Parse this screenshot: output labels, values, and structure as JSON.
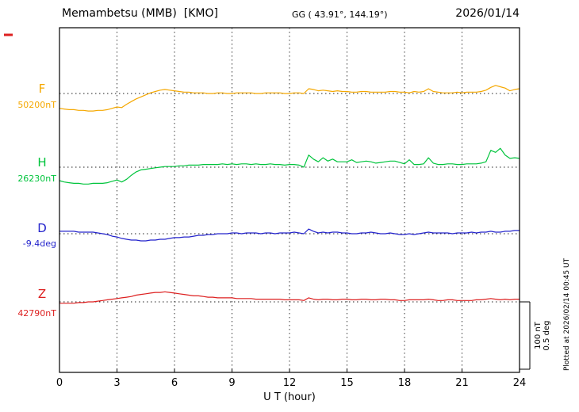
{
  "header": {
    "station_title": "Memambetsu (MMB)  [KMO]",
    "gg_coords": "GG ( 43.91°, 144.19°)",
    "date": "2026/01/14"
  },
  "x_axis": {
    "title": "U T (hour)",
    "min": 0,
    "max": 24,
    "tick_labels": [
      "0",
      "3",
      "6",
      "9",
      "12",
      "15",
      "18",
      "21",
      "24"
    ],
    "grid_hours": [
      3,
      6,
      9,
      12,
      15,
      18,
      21
    ]
  },
  "scale_bar": {
    "nt_label": "100 nT",
    "deg_label": "0.5 deg"
  },
  "plot_note": "Plotted at 2026/02/14 00:45 UT",
  "colors": {
    "F": "#f5a800",
    "H": "#00c43c",
    "D": "#2424cc",
    "Z": "#dd2020",
    "frame": "#000000",
    "grid": "#333333",
    "baseline": "#222222",
    "red_mark": "#dd2020"
  },
  "chart_data": {
    "type": "line",
    "title": "Memambetsu (MMB) [KMO] magnetogram 2026/01/14",
    "x_unit": "UT hour",
    "x_start": 0,
    "x_step": 0.25,
    "x_end": 24,
    "xlim": [
      0,
      24
    ],
    "grid": "dotted vertical every 3 h, dotted horizontal baseline per component",
    "legend_position": "left labels",
    "scale_note": "right bracket equals 100 nT or 0.5 deg",
    "series": [
      {
        "name": "F",
        "unit": "nT",
        "baseline_label": "50200nT",
        "baseline_value": 50200,
        "offsets_from_baseline": [
          -22,
          -23,
          -24,
          -24,
          -25,
          -25,
          -26,
          -26,
          -25,
          -25,
          -24,
          -22,
          -20,
          -21,
          -16,
          -12,
          -8,
          -5,
          -2,
          1,
          3,
          5,
          6,
          5,
          4,
          3,
          2,
          2,
          1,
          1,
          1,
          0,
          0,
          1,
          1,
          0,
          0,
          1,
          1,
          1,
          1,
          0,
          0,
          1,
          1,
          1,
          1,
          0,
          0,
          1,
          1,
          0,
          7,
          6,
          4,
          5,
          4,
          3,
          4,
          3,
          3,
          2,
          2,
          3,
          3,
          2,
          2,
          2,
          2,
          3,
          3,
          2,
          2,
          1,
          3,
          2,
          3,
          7,
          3,
          2,
          1,
          1,
          1,
          2,
          1,
          2,
          2,
          2,
          3,
          5,
          9,
          12,
          10,
          8,
          4,
          6,
          7
        ]
      },
      {
        "name": "H",
        "unit": "nT",
        "baseline_label": "26230nT",
        "baseline_value": 26230,
        "offsets_from_baseline": [
          -20,
          -22,
          -23,
          -24,
          -24,
          -25,
          -25,
          -24,
          -24,
          -24,
          -23,
          -21,
          -19,
          -22,
          -18,
          -12,
          -7,
          -4,
          -3,
          -2,
          -1,
          0,
          1,
          1,
          1,
          2,
          2,
          3,
          3,
          3,
          4,
          4,
          4,
          4,
          5,
          4,
          5,
          4,
          5,
          5,
          4,
          5,
          4,
          4,
          5,
          4,
          4,
          3,
          4,
          4,
          3,
          0,
          18,
          12,
          8,
          14,
          9,
          12,
          8,
          8,
          8,
          11,
          7,
          8,
          9,
          8,
          6,
          7,
          8,
          9,
          9,
          7,
          5,
          11,
          4,
          4,
          5,
          14,
          6,
          4,
          4,
          5,
          5,
          4,
          4,
          5,
          5,
          5,
          6,
          8,
          25,
          22,
          28,
          18,
          13,
          14,
          13
        ]
      },
      {
        "name": "D",
        "unit": "deg",
        "baseline_label": "-9.4deg",
        "baseline_value": -9.4,
        "offsets_from_baseline": [
          0.018,
          0.018,
          0.018,
          0.018,
          0.012,
          0.012,
          0.012,
          0.012,
          0.006,
          0,
          -0.006,
          -0.018,
          -0.024,
          -0.035,
          -0.041,
          -0.047,
          -0.047,
          -0.053,
          -0.053,
          -0.047,
          -0.047,
          -0.041,
          -0.041,
          -0.035,
          -0.029,
          -0.029,
          -0.024,
          -0.024,
          -0.018,
          -0.012,
          -0.012,
          -0.006,
          -0.006,
          0,
          0,
          0,
          0.006,
          0.006,
          0,
          0.006,
          0.006,
          0.006,
          0,
          0.006,
          0.006,
          0,
          0.006,
          0.006,
          0.006,
          0.012,
          0.006,
          0,
          0.035,
          0.018,
          0.006,
          0.012,
          0.006,
          0.012,
          0.012,
          0.006,
          0.006,
          0,
          0,
          0.006,
          0.006,
          0.012,
          0.006,
          0,
          0,
          0.006,
          0,
          -0.006,
          -0.006,
          0,
          -0.006,
          0,
          0.006,
          0.012,
          0.006,
          0.006,
          0.006,
          0.006,
          0,
          0.006,
          0.006,
          0.006,
          0.012,
          0.006,
          0.012,
          0.012,
          0.018,
          0.012,
          0.012,
          0.018,
          0.018,
          0.024,
          0.024
        ]
      },
      {
        "name": "Z",
        "unit": "nT",
        "baseline_label": "42790nT",
        "baseline_value": 42790,
        "offsets_from_baseline": [
          -2,
          -2,
          -2,
          -2,
          -1,
          -1,
          0,
          0,
          1,
          2,
          3,
          4,
          5,
          6,
          7,
          8,
          10,
          11,
          12,
          13,
          14,
          14,
          15,
          14,
          13,
          12,
          11,
          10,
          9,
          9,
          8,
          7,
          7,
          6,
          6,
          6,
          6,
          5,
          5,
          5,
          5,
          4,
          4,
          4,
          4,
          4,
          4,
          3,
          3,
          3,
          3,
          2,
          6,
          4,
          3,
          4,
          4,
          3,
          3,
          4,
          4,
          3,
          3,
          4,
          4,
          3,
          3,
          4,
          4,
          3,
          3,
          2,
          2,
          3,
          3,
          3,
          3,
          4,
          3,
          2,
          2,
          3,
          3,
          2,
          2,
          2,
          2,
          3,
          3,
          4,
          5,
          4,
          3,
          4,
          3,
          4,
          4
        ]
      }
    ],
    "scale": {
      "pixels_per_100nT": 85,
      "pixels_per_0_5deg": 85
    }
  }
}
